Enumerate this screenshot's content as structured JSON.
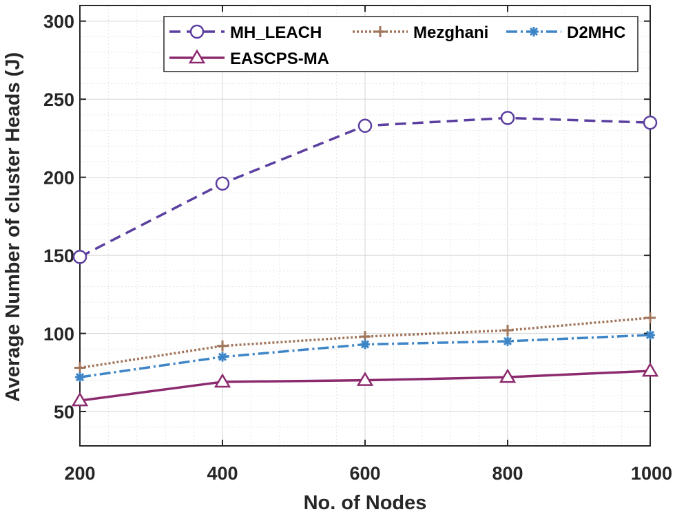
{
  "chart_data": {
    "type": "line",
    "title": "",
    "xlabel": "No. of Nodes",
    "ylabel": "Average Number of cluster Heads (J)",
    "x": [
      200,
      400,
      600,
      800,
      1000
    ],
    "xlim": [
      200,
      1000
    ],
    "ylim": [
      28,
      310
    ],
    "xticks": [
      200,
      400,
      600,
      800,
      1000
    ],
    "yticks": [
      50,
      100,
      150,
      200,
      250,
      300
    ],
    "grid": true,
    "minor_grid": true,
    "legend_position": "top-right",
    "series": [
      {
        "name": "MH_LEACH",
        "values": [
          149,
          196,
          233,
          238,
          235
        ],
        "color": "#5b3fa0",
        "line_style": "dashed",
        "marker": "circle"
      },
      {
        "name": "Mezghani",
        "values": [
          78,
          92,
          98,
          102,
          110
        ],
        "color": "#a0755a",
        "line_style": "dotted",
        "marker": "plus"
      },
      {
        "name": "D2MHC",
        "values": [
          72,
          85,
          93,
          95,
          99
        ],
        "color": "#3d85c6",
        "line_style": "dash-dot",
        "marker": "asterisk"
      },
      {
        "name": "EASCPS-MA",
        "values": [
          57,
          69,
          70,
          72,
          76
        ],
        "color": "#8c2a6e",
        "line_style": "solid",
        "marker": "triangle"
      }
    ]
  }
}
